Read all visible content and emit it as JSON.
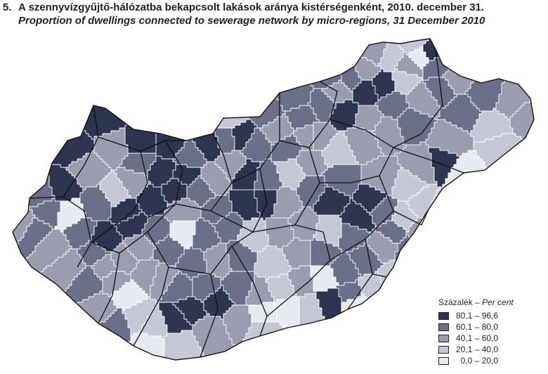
{
  "header": {
    "number": "5.",
    "title_hu": "A szennyvízgyűjtő-hálózatba bekapcsolt lakások aránya kistérségenként, 2010. december 31.",
    "title_en": "Proportion of dwellings connected to sewerage network by micro-regions, 31 December 2010"
  },
  "legend": {
    "title_hu": "Százalék – ",
    "title_en": "Per cent",
    "classes": [
      {
        "label": "80,1 – 96,6",
        "color": "#2d3550"
      },
      {
        "label": "60,1 – 80,0",
        "color": "#6b6f88"
      },
      {
        "label": "40,1 – 60,0",
        "color": "#9a9db0"
      },
      {
        "label": "20,1 – 40,0",
        "color": "#c4c7d4"
      },
      {
        "label": "  0,0 – 20,0",
        "color": "#e6ebf1"
      }
    ]
  },
  "map": {
    "county_border_color": "#111111",
    "region_border_color": "#ffffff"
  }
}
